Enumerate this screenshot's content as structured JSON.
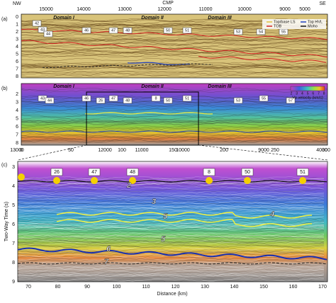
{
  "panel_a": {
    "letter": "(a)",
    "nw": "NW",
    "se": "SE",
    "axis_title": "CMP",
    "top_ticks": [
      "15000",
      "14000",
      "13000",
      "12000",
      "11000",
      "10000",
      "9000",
      "5000"
    ],
    "bottom_ticks": [
      "13000",
      "12000",
      "11000",
      "10000",
      "9000",
      "4000"
    ],
    "y_ticks": [
      "0",
      "1",
      "2",
      "3",
      "4",
      "5",
      "6",
      "7",
      "8"
    ],
    "domains": [
      "Domain I",
      "Domain II",
      "Domain III"
    ],
    "stations": [
      "42",
      "43",
      "44",
      "46",
      "47",
      "48",
      "50",
      "51",
      "53",
      "54",
      "55"
    ],
    "legend": [
      "Top/base LS",
      "TOB",
      "Top HVL",
      "Moho"
    ]
  },
  "panel_b": {
    "letter": "(b)",
    "y_ticks": [
      "2",
      "3",
      "4",
      "5",
      "6",
      "7",
      "8"
    ],
    "x_ticks": [
      "0",
      "50",
      "100",
      "150",
      "200",
      "250",
      "300"
    ],
    "domains": [
      "Domain I",
      "Domain II",
      "Domain III"
    ],
    "stations": [
      "43",
      "44",
      "46",
      "26",
      "47",
      "48",
      "8",
      "50",
      "51",
      "53",
      "55",
      "57"
    ],
    "colorbar_ticks": [
      "2",
      "3",
      "4",
      "5",
      "6",
      "7",
      "8"
    ],
    "colorbar_title": "Vp velocity (km/s)"
  },
  "panel_c": {
    "letter": "(c)",
    "y_title": "Two-Way Time (s)",
    "x_title": "Distance (km)",
    "y_ticks": [
      "3",
      "4",
      "5",
      "6",
      "7",
      "8",
      "9"
    ],
    "x_ticks": [
      "70",
      "80",
      "90",
      "100",
      "110",
      "120",
      "130",
      "140",
      "150",
      "160",
      "170"
    ],
    "stations": [
      "26",
      "47",
      "48",
      "8",
      "50",
      "51"
    ],
    "layer_labels": [
      "2",
      "3",
      "5",
      "4",
      "5",
      "6",
      "7"
    ]
  }
}
